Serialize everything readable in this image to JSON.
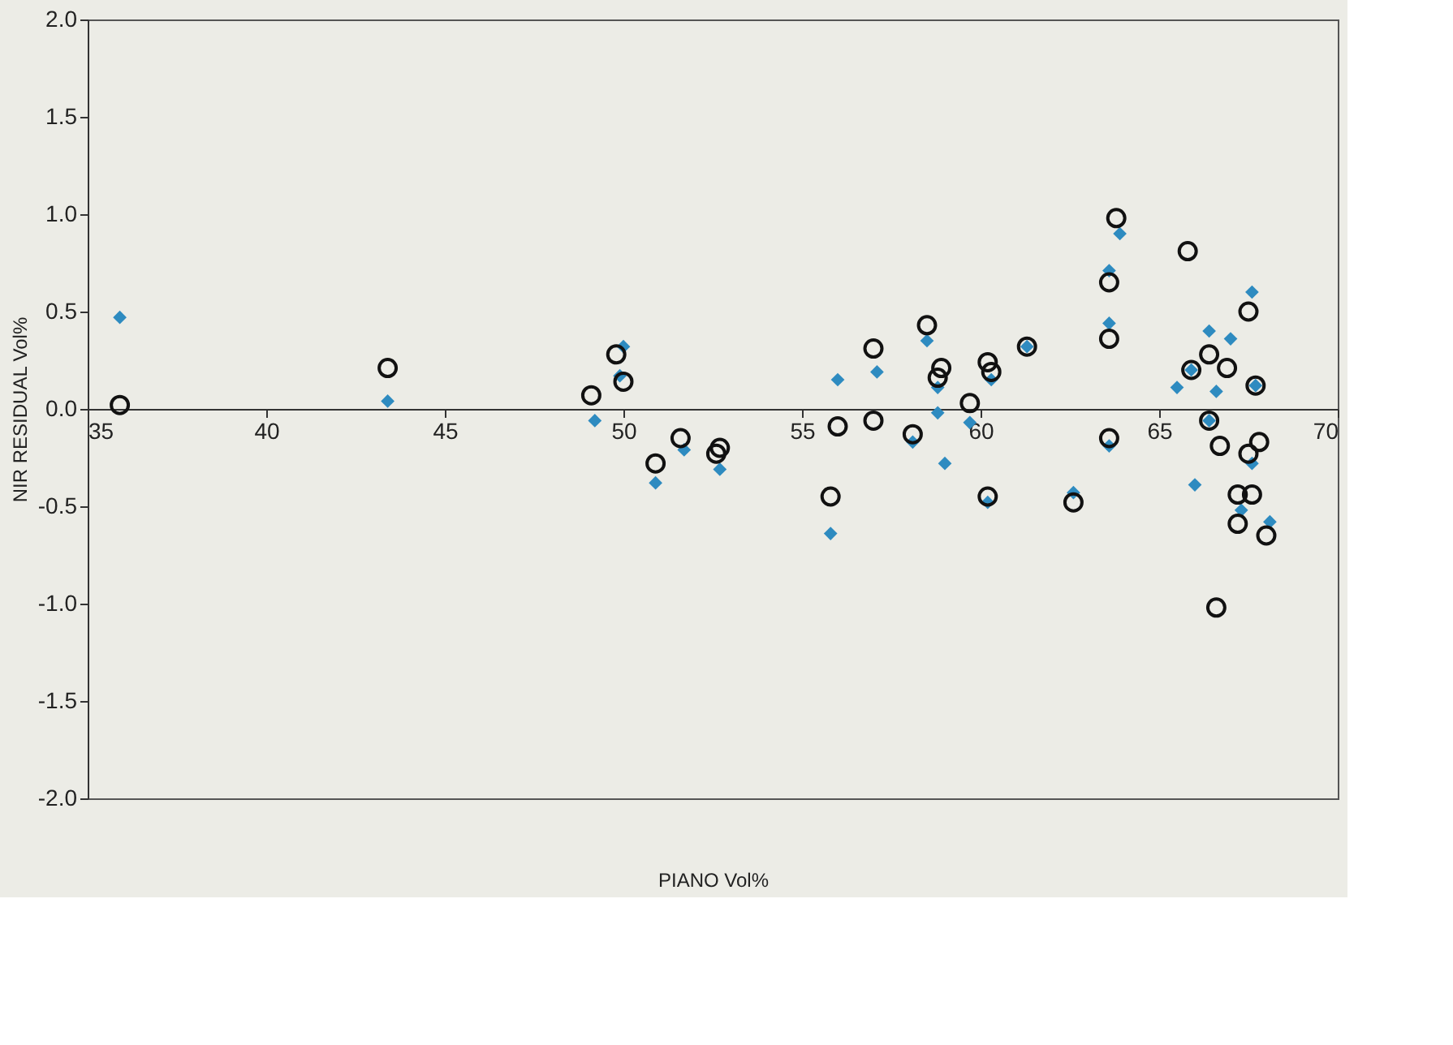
{
  "chart_data": {
    "type": "scatter",
    "xlabel": "PIANO Vol%",
    "ylabel": "NIR RESIDUAL Vol%",
    "xlim": [
      35,
      70
    ],
    "ylim": [
      -2.0,
      2.0
    ],
    "xticks": [
      35,
      40,
      45,
      50,
      55,
      60,
      65,
      70
    ],
    "yticks": [
      {
        "value": -2,
        "label": "-2.0"
      },
      {
        "value": -1.5,
        "label": "-1.5"
      },
      {
        "value": -1,
        "label": "-1.0"
      },
      {
        "value": -0.5,
        "label": "-0.5"
      },
      {
        "value": 0,
        "label": "0.0"
      },
      {
        "value": 0.5,
        "label": "0.5"
      },
      {
        "value": 1,
        "label": "1.0"
      },
      {
        "value": 1.5,
        "label": "1.5"
      },
      {
        "value": 2,
        "label": "2.0"
      }
    ],
    "grid": false,
    "series": [
      {
        "color": "#2e8bc0",
        "marker": "diamond",
        "x": [
          35.9,
          43.4,
          49.2,
          50.0,
          49.9,
          50.9,
          51.7,
          52.7,
          56.0,
          55.8,
          57.1,
          58.5,
          58.8,
          58.8,
          58.1,
          59.7,
          59.0,
          60.3,
          60.2,
          61.3,
          63.9,
          63.6,
          63.6,
          67.6,
          66.4,
          67.0,
          65.5,
          66.6,
          65.9,
          67.7,
          63.6,
          62.6,
          66.0,
          67.6,
          67.3,
          68.1,
          66.4
        ],
        "values": [
          0.47,
          0.04,
          -0.06,
          0.32,
          0.17,
          -0.38,
          -0.21,
          -0.31,
          0.15,
          -0.64,
          0.19,
          0.35,
          -0.02,
          0.11,
          -0.17,
          -0.07,
          -0.28,
          0.15,
          -0.48,
          0.32,
          0.9,
          0.71,
          0.44,
          0.6,
          0.4,
          0.36,
          0.11,
          0.09,
          0.2,
          0.12,
          -0.19,
          -0.43,
          -0.39,
          -0.28,
          -0.52,
          -0.58,
          -0.06
        ]
      },
      {
        "color": "#111111",
        "marker": "circle",
        "x": [
          35.9,
          43.4,
          49.1,
          49.8,
          50.0,
          50.9,
          51.6,
          52.7,
          52.6,
          56.0,
          55.8,
          57.0,
          57.0,
          58.5,
          58.9,
          58.8,
          58.1,
          59.7,
          60.2,
          60.3,
          60.2,
          61.3,
          63.8,
          65.8,
          63.6,
          63.6,
          67.5,
          66.4,
          66.9,
          65.9,
          67.7,
          66.4,
          63.6,
          66.7,
          67.8,
          67.5,
          67.2,
          67.6,
          62.6,
          67.2,
          68.0,
          66.6
        ],
        "values": [
          0.02,
          0.21,
          0.07,
          0.28,
          0.14,
          -0.28,
          -0.15,
          -0.2,
          -0.23,
          -0.09,
          -0.45,
          0.31,
          -0.06,
          0.43,
          0.21,
          0.16,
          -0.13,
          0.03,
          0.24,
          0.19,
          -0.45,
          0.32,
          0.98,
          0.81,
          0.65,
          0.36,
          0.5,
          0.28,
          0.21,
          0.2,
          0.12,
          -0.06,
          -0.15,
          -0.19,
          -0.17,
          -0.23,
          -0.44,
          -0.44,
          -0.48,
          -0.59,
          -0.65,
          -1.02
        ]
      }
    ]
  }
}
